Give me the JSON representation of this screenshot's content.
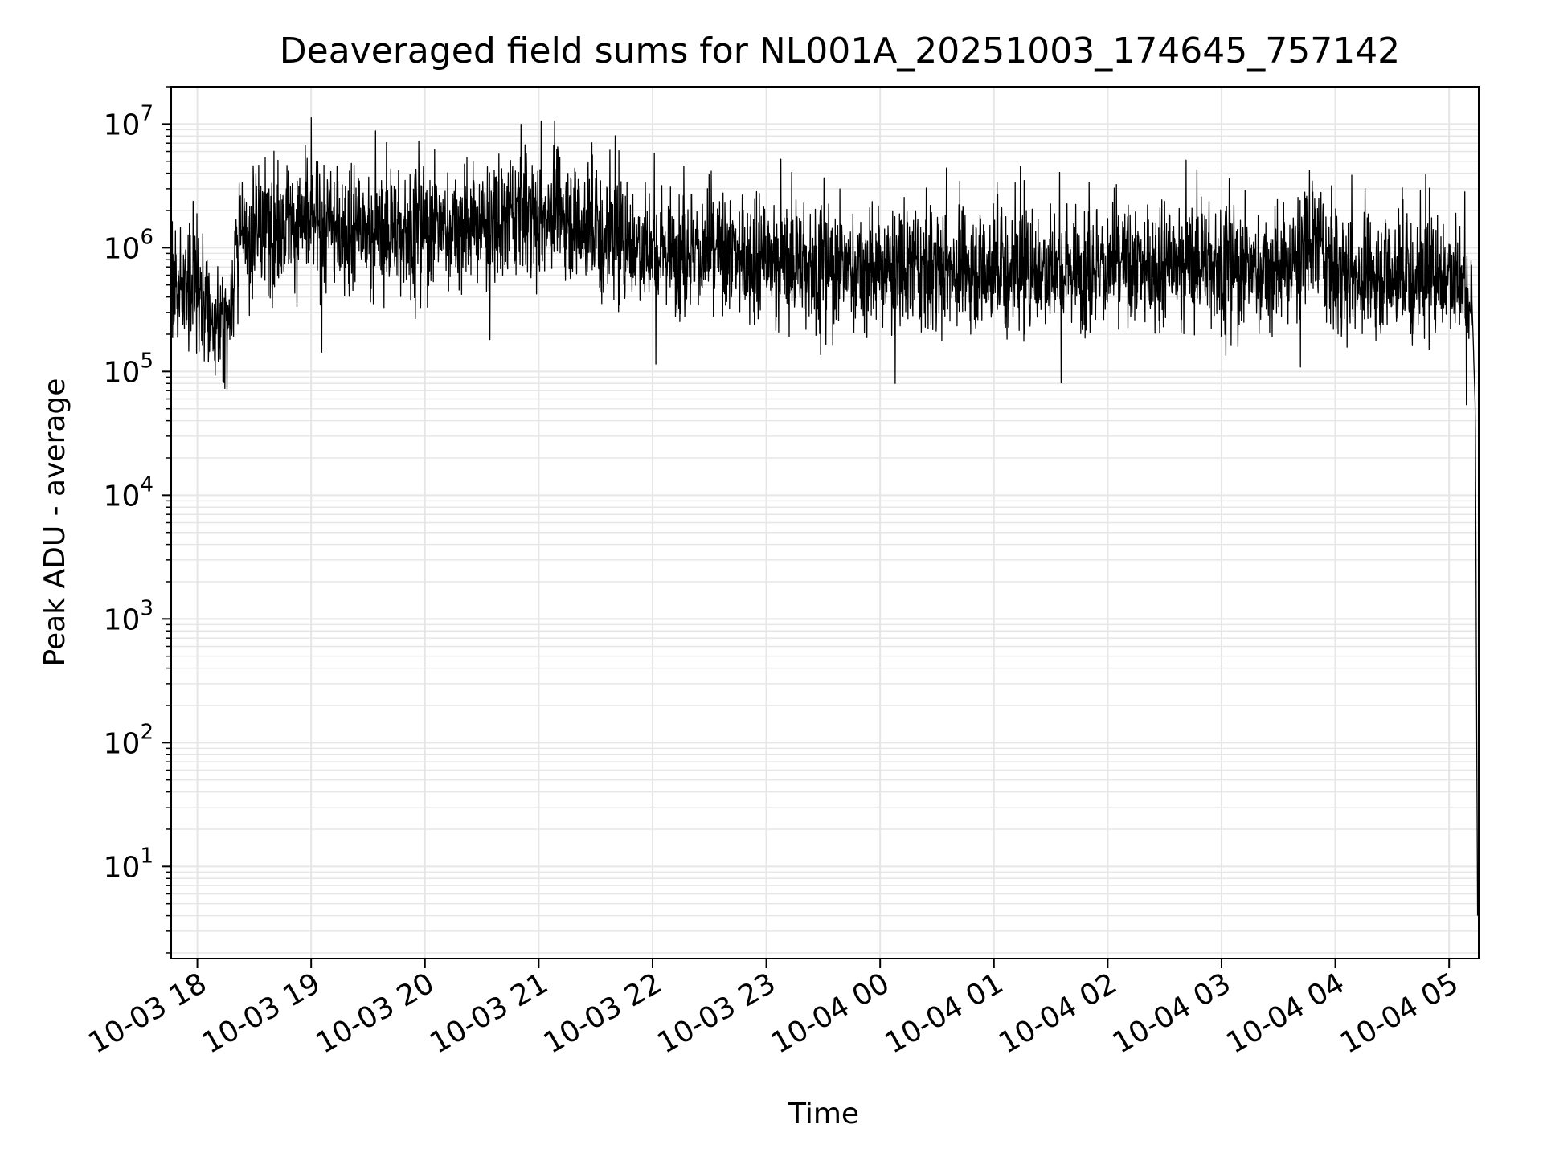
{
  "chart_data": {
    "type": "line",
    "title": "Deaveraged field sums for NL001A_20251003_174645_757142",
    "xlabel": "Time",
    "ylabel": "Peak ADU - average",
    "yscale": "log",
    "ylim": [
      1.8,
      20000000
    ],
    "xlim_hours_from_1003_18": [
      -0.23,
      11.26
    ],
    "grid": true,
    "legend": "none",
    "colors": {
      "line": "#000000",
      "grid": "#e6e6e6",
      "axes": "#000000"
    },
    "x_ticks": [
      {
        "hour": 0,
        "label": "10-03 18"
      },
      {
        "hour": 1,
        "label": "10-03 19"
      },
      {
        "hour": 2,
        "label": "10-03 20"
      },
      {
        "hour": 3,
        "label": "10-03 21"
      },
      {
        "hour": 4,
        "label": "10-03 22"
      },
      {
        "hour": 5,
        "label": "10-03 23"
      },
      {
        "hour": 6,
        "label": "10-04 00"
      },
      {
        "hour": 7,
        "label": "10-04 01"
      },
      {
        "hour": 8,
        "label": "10-04 02"
      },
      {
        "hour": 9,
        "label": "10-04 03"
      },
      {
        "hour": 10,
        "label": "10-04 04"
      },
      {
        "hour": 11,
        "label": "10-04 05"
      }
    ],
    "y_ticks": [
      {
        "exp": 1,
        "base": "10",
        "sup": "1"
      },
      {
        "exp": 2,
        "base": "10",
        "sup": "2"
      },
      {
        "exp": 3,
        "base": "10",
        "sup": "3"
      },
      {
        "exp": 4,
        "base": "10",
        "sup": "4"
      },
      {
        "exp": 5,
        "base": "10",
        "sup": "5"
      },
      {
        "exp": 6,
        "base": "10",
        "sup": "6"
      },
      {
        "exp": 7,
        "base": "10",
        "sup": "7"
      }
    ],
    "series": [
      {
        "name": "deaveraged field sum",
        "x_hours": [
          -0.22,
          0.0,
          0.1,
          0.2,
          0.27,
          0.35,
          0.5,
          0.75,
          1.0,
          1.3,
          1.6,
          2.0,
          2.4,
          2.7,
          2.85,
          3.0,
          3.15,
          3.3,
          3.6,
          4.0,
          4.5,
          5.0,
          5.5,
          6.0,
          6.5,
          7.0,
          7.5,
          8.0,
          8.5,
          8.8,
          9.0,
          9.3,
          9.6,
          9.8,
          10.0,
          10.2,
          10.5,
          10.8,
          11.0,
          11.1,
          11.2,
          11.23,
          11.25
        ],
        "median_values": [
          520000,
          560000,
          300000,
          220000,
          280000,
          1000000,
          1300000,
          1600000,
          1600000,
          1400000,
          1300000,
          1400000,
          1500000,
          1500000,
          2300000,
          1600000,
          2200000,
          1700000,
          1300000,
          1000000,
          900000,
          800000,
          700000,
          650000,
          700000,
          700000,
          700000,
          700000,
          700000,
          800000,
          700000,
          650000,
          700000,
          1200000,
          650000,
          600000,
          650000,
          600000,
          650000,
          550000,
          400000,
          50000,
          4
        ]
      }
    ]
  }
}
